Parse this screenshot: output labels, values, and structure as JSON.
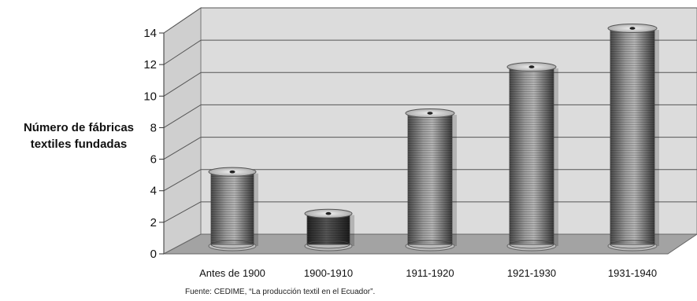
{
  "chart_data": {
    "type": "bar",
    "categories": [
      "Antes de 1900",
      "1900-1910",
      "1911-1920",
      "1921-1930",
      "1931-1940"
    ],
    "values": [
      4.7,
      2.0,
      8.5,
      11.5,
      14.0
    ],
    "title": "",
    "xlabel": "",
    "ylabel": "Número de fábricas textiles fundadas",
    "ylabel_lines": [
      "Número de fábricas",
      "textiles fundadas"
    ],
    "ylim": [
      0,
      14
    ],
    "yticks": [
      0,
      2,
      4,
      6,
      8,
      10,
      12,
      14
    ],
    "grid": true,
    "legend": "none",
    "style": "3d-cylinder",
    "colors": {
      "bar": "#8c8c8c",
      "bar_dark": "#3a3a3a",
      "wall": "#d9d9d9",
      "floor": "#9d9d9d"
    }
  },
  "source": "Fuente: CEDIME, “La producción textil en el Ecuador”."
}
